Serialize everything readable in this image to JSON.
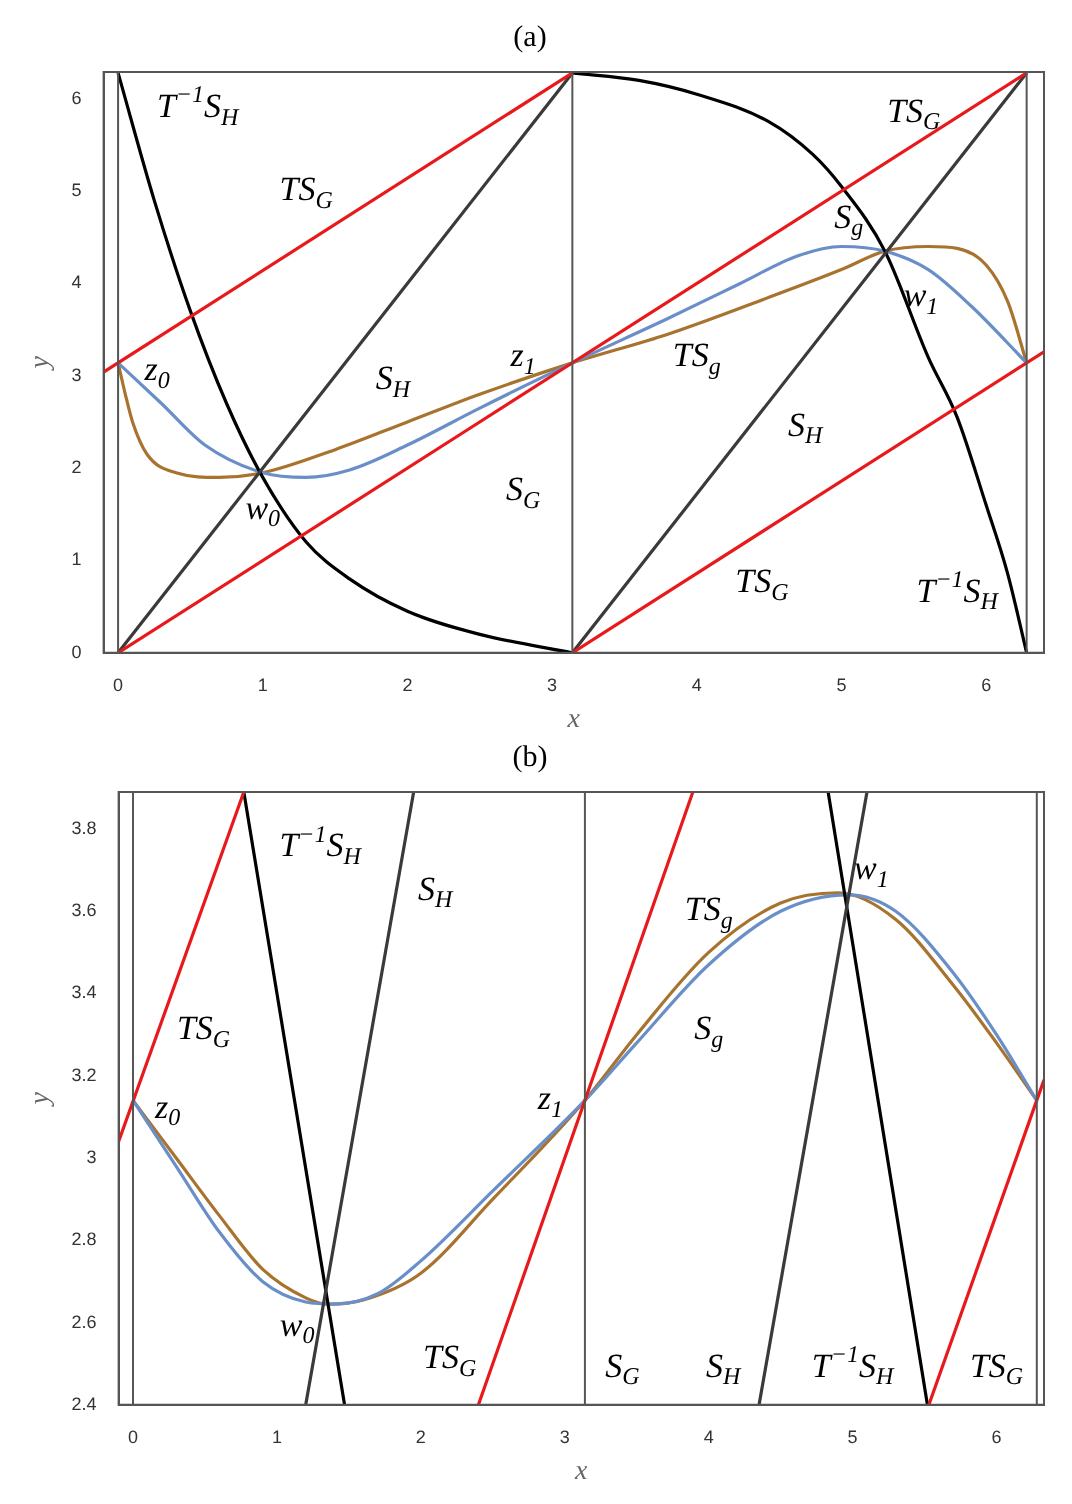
{
  "chart_data": [
    {
      "type": "line",
      "title": "(a)",
      "xlabel": "x",
      "ylabel": "y",
      "xlim": [
        -0.1,
        6.4
      ],
      "ylim": [
        0,
        6.29
      ],
      "xticks": [
        0,
        1,
        2,
        3,
        4,
        5,
        6
      ],
      "yticks": [
        0,
        1,
        2,
        3,
        4,
        5,
        6
      ],
      "grid": false,
      "ref_lines": [
        {
          "axis": "x",
          "value": 0,
          "color": "#555555"
        },
        {
          "axis": "x",
          "value": 3.14,
          "color": "#555555"
        },
        {
          "axis": "x",
          "value": 6.28,
          "color": "#555555"
        }
      ],
      "series": [
        {
          "color": "#e8191b",
          "x": [
            -0.1,
            3.14
          ],
          "values": [
            3.04,
            6.28
          ]
        },
        {
          "color": "#e8191b",
          "x": [
            0,
            6.28
          ],
          "values": [
            0,
            6.28
          ]
        },
        {
          "color": "#e8191b",
          "x": [
            3.14,
            6.4
          ],
          "values": [
            0,
            3.26
          ]
        },
        {
          "color": "#3a3a3a",
          "x": [
            0,
            3.14
          ],
          "values": [
            0,
            6.28
          ]
        },
        {
          "color": "#3a3a3a",
          "x": [
            3.14,
            6.28
          ],
          "values": [
            0,
            6.28
          ]
        },
        {
          "color": "#000000",
          "x": [
            0,
            0.25,
            0.5,
            0.75,
            1,
            1.3,
            1.6,
            2,
            2.5,
            3.14
          ],
          "values": [
            6.28,
            4.9,
            3.7,
            2.7,
            1.9,
            1.2,
            0.8,
            0.45,
            0.2,
            0
          ]
        },
        {
          "color": "#000000",
          "x": [
            3.14,
            3.6,
            4,
            4.5,
            4.8,
            5,
            5.3,
            5.6,
            5.8,
            6,
            6.15,
            6.28
          ],
          "values": [
            6.28,
            6.2,
            6.05,
            5.75,
            5.4,
            5.05,
            4.35,
            3.2,
            2.55,
            1.6,
            0.85,
            0
          ]
        },
        {
          "color": "#6a8fc8",
          "x": [
            0,
            0.3,
            0.6,
            1,
            1.3,
            1.6,
            2,
            2.5,
            3.14,
            3.8,
            4.3,
            4.7,
            5,
            5.3,
            5.6,
            5.9,
            6.28
          ],
          "values": [
            3.14,
            2.7,
            2.25,
            1.95,
            1.9,
            1.98,
            2.25,
            2.65,
            3.14,
            3.62,
            4.0,
            4.3,
            4.4,
            4.35,
            4.15,
            3.75,
            3.14
          ]
        },
        {
          "color": "#a8732e",
          "x": [
            0,
            0.05,
            0.1,
            0.2,
            0.4,
            0.7,
            1,
            1.5,
            2,
            2.5,
            3.14,
            3.8,
            4.5,
            5,
            5.3,
            5.6,
            5.8,
            6,
            6.15,
            6.28
          ],
          "values": [
            3.14,
            2.8,
            2.5,
            2.15,
            1.95,
            1.9,
            1.95,
            2.2,
            2.5,
            2.8,
            3.14,
            3.45,
            3.85,
            4.15,
            4.35,
            4.4,
            4.38,
            4.2,
            3.8,
            3.14
          ]
        }
      ],
      "annotations": [
        "T$^{−1}$S$_{H}$",
        "TS$_{G}$",
        {
          "text": "z$_{0}$",
          "x": 0,
          "y": 3.14
        },
        "S$_{H}$",
        {
          "text": "z$_{1}$",
          "x": 3.14,
          "y": 3.14
        },
        {
          "text": "w$_{0}$",
          "x": 0.98,
          "y": 1.95
        },
        "S$_{G}$",
        "TS$_{g}$",
        "S$_{g}$",
        {
          "text": "w$_{1}$",
          "x": 5.3,
          "y": 4.35
        },
        "TS$_{G}$",
        "S$_{H}$",
        "TS$_{G}$",
        "T$^{−1}$S$_{H}$"
      ]
    },
    {
      "type": "line",
      "title": "(b)",
      "xlabel": "x",
      "ylabel": "y",
      "xlim": [
        -0.1,
        6.33
      ],
      "ylim": [
        2.4,
        3.89
      ],
      "xticks": [
        0,
        1,
        2,
        3,
        4,
        5,
        6
      ],
      "yticks": [
        2.4,
        2.6,
        2.8,
        3.0,
        3.2,
        3.4,
        3.6,
        3.8
      ],
      "grid": false,
      "ref_lines": [
        {
          "axis": "x",
          "value": 0,
          "color": "#555555"
        },
        {
          "axis": "x",
          "value": 3.14,
          "color": "#555555"
        },
        {
          "axis": "x",
          "value": 6.28,
          "color": "#555555"
        }
      ],
      "series": [
        {
          "color": "#e8191b",
          "x": [
            -0.1,
            0.77
          ],
          "values": [
            3.04,
            3.89
          ]
        },
        {
          "color": "#e8191b",
          "x": [
            2.4,
            3.89
          ],
          "values": [
            2.4,
            3.89
          ]
        },
        {
          "color": "#e8191b",
          "x": [
            5.53,
            6.33
          ],
          "values": [
            2.4,
            3.19
          ]
        },
        {
          "color": "#3a3a3a",
          "x": [
            1.2,
            1.95
          ],
          "values": [
            2.4,
            3.89
          ]
        },
        {
          "color": "#3a3a3a",
          "x": [
            4.35,
            5.1
          ],
          "values": [
            2.4,
            3.89
          ]
        },
        {
          "color": "#000000",
          "x": [
            0.77,
            1.47
          ],
          "values": [
            3.89,
            2.4
          ]
        },
        {
          "color": "#000000",
          "x": [
            4.83,
            5.52
          ],
          "values": [
            3.89,
            2.4
          ]
        },
        {
          "color": "#6a8fc8",
          "x": [
            0,
            0.3,
            0.6,
            0.9,
            1.2,
            1.4,
            1.7,
            2,
            2.5,
            3.14,
            3.5,
            4,
            4.5,
            4.97,
            5.3,
            5.7,
            6,
            6.28
          ],
          "values": [
            3.14,
            2.98,
            2.82,
            2.7,
            2.65,
            2.645,
            2.67,
            2.75,
            2.92,
            3.14,
            3.28,
            3.47,
            3.6,
            3.64,
            3.6,
            3.45,
            3.3,
            3.14
          ]
        },
        {
          "color": "#a8732e",
          "x": [
            0,
            0.3,
            0.6,
            0.9,
            1.2,
            1.35,
            1.6,
            2,
            2.5,
            3.14,
            3.5,
            4,
            4.5,
            4.9,
            5.3,
            5.7,
            6,
            6.28
          ],
          "values": [
            3.14,
            3.0,
            2.86,
            2.73,
            2.66,
            2.645,
            2.655,
            2.72,
            2.9,
            3.14,
            3.3,
            3.5,
            3.62,
            3.645,
            3.58,
            3.42,
            3.28,
            3.14
          ]
        }
      ],
      "annotations": [
        "T$^{−1}$S$_{H}$",
        "S$_{H}$",
        "TS$_{G}$",
        {
          "text": "z$_{0}$",
          "x": 0,
          "y": 3.14
        },
        {
          "text": "w$_{0}$",
          "x": 1.32,
          "y": 2.65
        },
        "TS$_{G}$",
        {
          "text": "z$_{1}$",
          "x": 3.14,
          "y": 3.14
        },
        "S$_{G}$",
        "S$_{H}$",
        "T$^{−1}$S$_{H}$",
        "TS$_{G}$",
        "TS$_{g}$",
        "S$_{g}$",
        {
          "text": "w$_{1}$",
          "x": 4.97,
          "y": 3.64
        }
      ]
    }
  ]
}
